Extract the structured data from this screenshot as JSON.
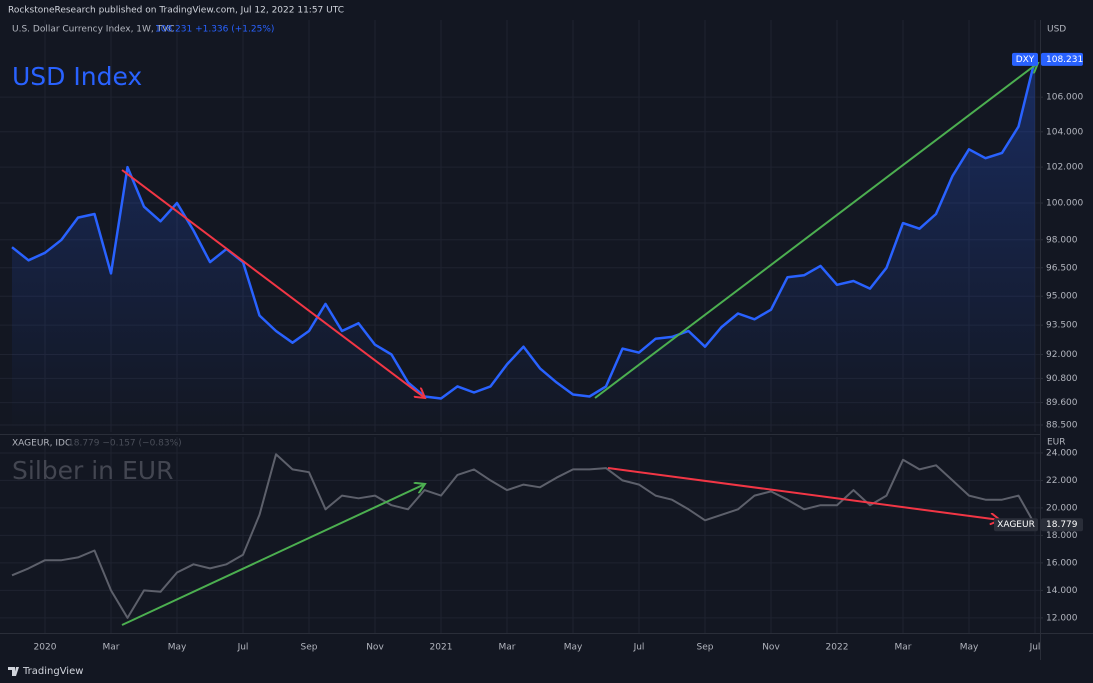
{
  "header": {
    "published": "RockstoneResearch published on TradingView.com, Jul 12, 2022 11:57 UTC",
    "brand": "TradingView"
  },
  "chart_data": [
    {
      "type": "line",
      "title": "USD Index",
      "subtitle": "U.S. Dollar Currency Index, 1W, TVC",
      "legend_values": "108.231  +1.336 (+1.25%)",
      "unit": "USD",
      "log_scale": true,
      "grid": true,
      "ylim": [
        88.16,
        110.6
      ],
      "yticks": [
        {
          "value": 88.5,
          "label": "88.500"
        },
        {
          "value": 89.6,
          "label": "89.600"
        },
        {
          "value": 90.8,
          "label": "90.800"
        },
        {
          "value": 92,
          "label": "92.000"
        },
        {
          "value": 93.5,
          "label": "93.500"
        },
        {
          "value": 95,
          "label": "95.000"
        },
        {
          "value": 96.5,
          "label": "96.500"
        },
        {
          "value": 98,
          "label": "98.000"
        },
        {
          "value": 100,
          "label": "100.000"
        },
        {
          "value": 102,
          "label": "102.000"
        },
        {
          "value": 104,
          "label": "104.000"
        },
        {
          "value": 106,
          "label": "106.000"
        }
      ],
      "series": [
        {
          "name": "DXY",
          "color": "#2962ff",
          "values": [
            97.6,
            96.9,
            97.3,
            98.0,
            99.2,
            99.4,
            96.2,
            102.0,
            99.8,
            99.0,
            100.0,
            98.5,
            96.8,
            97.5,
            96.8,
            94.0,
            93.2,
            92.6,
            93.2,
            94.6,
            93.2,
            93.6,
            92.5,
            92.0,
            90.6,
            89.9,
            89.8,
            90.4,
            90.1,
            90.4,
            91.5,
            92.4,
            91.3,
            90.6,
            90.0,
            89.9,
            90.4,
            92.3,
            92.1,
            92.8,
            92.9,
            93.2,
            92.4,
            93.4,
            94.1,
            93.8,
            94.3,
            96.0,
            96.1,
            96.6,
            95.6,
            95.8,
            95.4,
            96.5,
            98.9,
            98.6,
            99.4,
            101.5,
            103.0,
            102.5,
            102.8,
            104.3,
            108.231
          ]
        }
      ]
    },
    {
      "type": "line",
      "title": "Silber in EUR",
      "subtitle": "XAGEUR, IDC",
      "legend_values": "18.779  −0.157 (−0.83%)",
      "unit": "EUR",
      "grid": true,
      "ylim": [
        10.9,
        25.16
      ],
      "yticks": [
        {
          "value": 12,
          "label": "12.000"
        },
        {
          "value": 14,
          "label": "14.000"
        },
        {
          "value": 16,
          "label": "16.000"
        },
        {
          "value": 18,
          "label": "18.000"
        },
        {
          "value": 20,
          "label": "20.000"
        },
        {
          "value": 22,
          "label": "22.000"
        },
        {
          "value": 24,
          "label": "24.000"
        }
      ],
      "categories": [
        null,
        null,
        "2020",
        null,
        null,
        null,
        "Mar",
        null,
        null,
        null,
        "May",
        null,
        null,
        null,
        "Jul",
        null,
        null,
        null,
        "Sep",
        null,
        null,
        null,
        "Nov",
        null,
        null,
        null,
        "2021",
        null,
        null,
        null,
        "Mar",
        null,
        null,
        null,
        "May",
        null,
        null,
        null,
        "Jul",
        null,
        null,
        null,
        "Sep",
        null,
        null,
        null,
        "Nov",
        null,
        null,
        null,
        "2022",
        null,
        null,
        null,
        "Mar",
        null,
        null,
        null,
        "May",
        null,
        null,
        null,
        "Jul"
      ],
      "series": [
        {
          "name": "XAGEUR",
          "color": "#5d606b",
          "values": [
            15.1,
            15.6,
            16.2,
            16.2,
            16.4,
            16.9,
            14.0,
            12.0,
            14.0,
            13.9,
            15.3,
            15.9,
            15.6,
            15.9,
            16.6,
            19.5,
            23.9,
            22.8,
            22.6,
            19.9,
            20.9,
            20.7,
            20.9,
            20.2,
            19.9,
            21.3,
            20.9,
            22.4,
            22.8,
            22.0,
            21.3,
            21.7,
            21.5,
            22.2,
            22.8,
            22.8,
            22.9,
            22.0,
            21.7,
            20.9,
            20.6,
            19.9,
            19.1,
            19.5,
            19.9,
            20.9,
            21.2,
            20.6,
            19.9,
            20.2,
            20.2,
            21.3,
            20.2,
            20.9,
            23.5,
            22.8,
            23.1,
            22.0,
            20.9,
            20.6,
            20.6,
            20.9,
            18.779
          ]
        }
      ]
    }
  ]
}
